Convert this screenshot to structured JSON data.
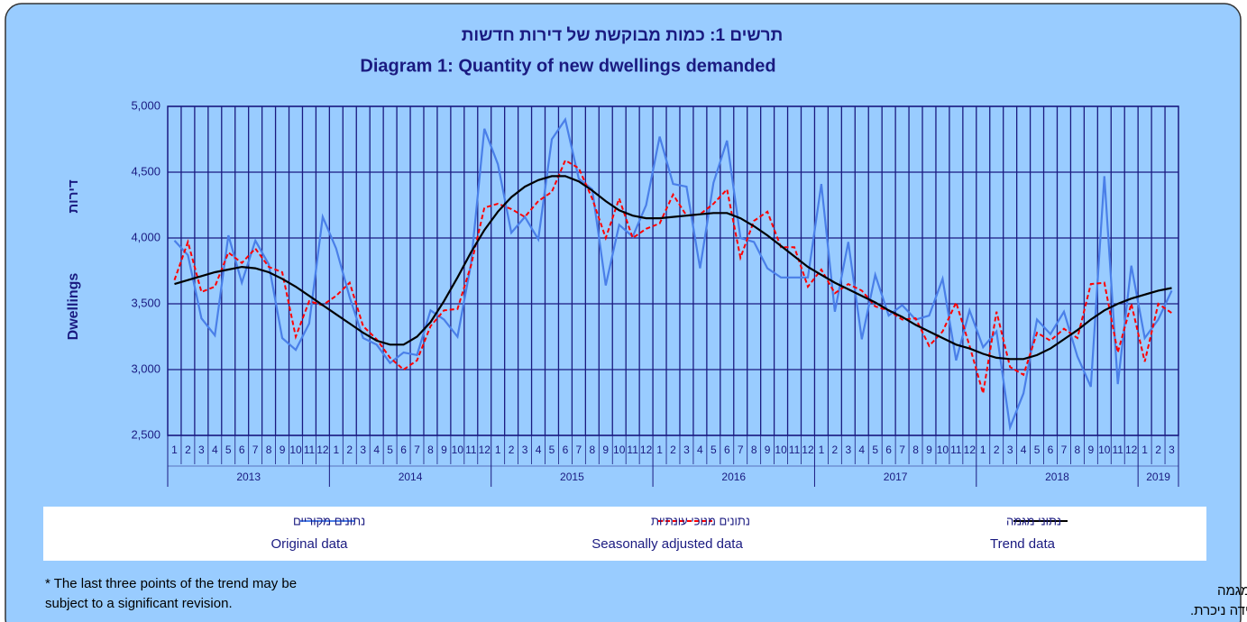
{
  "chart_data": {
    "type": "line",
    "title": "תרשים 1: כמות מבוקשת של דירות חדשות",
    "subtitle": "Diagram 1: Quantity of new dwellings demanded",
    "y_label": "Dwellings",
    "y_label_he": "דירות",
    "categories": [
      "1",
      "2",
      "3",
      "4",
      "5",
      "6",
      "7",
      "8",
      "9",
      "10",
      "11",
      "12",
      "1",
      "2",
      "3",
      "4",
      "5",
      "6",
      "7",
      "8",
      "9",
      "10",
      "11",
      "12",
      "1",
      "2",
      "3",
      "4",
      "5",
      "6",
      "7",
      "8",
      "9",
      "10",
      "11",
      "12",
      "1",
      "2",
      "3",
      "4",
      "5",
      "6",
      "7",
      "8",
      "9",
      "10",
      "11",
      "12",
      "1",
      "2",
      "3",
      "4",
      "5",
      "6",
      "7",
      "8",
      "9",
      "10",
      "11",
      "12",
      "1",
      "2",
      "3",
      "4",
      "5",
      "6",
      "7",
      "8",
      "9",
      "10",
      "11",
      "12",
      "1",
      "2",
      "3"
    ],
    "years": [
      "2013",
      "2014",
      "2015",
      "2016",
      "2017",
      "2018",
      "2019"
    ],
    "series": [
      {
        "name": "Original data",
        "name_he": "נתונים מקוריים",
        "color": "#4a7fe8",
        "dash": "solid",
        "values": [
          3980,
          3870,
          3390,
          3260,
          4020,
          3660,
          3980,
          3800,
          3240,
          3150,
          3350,
          4160,
          3920,
          3550,
          3240,
          3190,
          3050,
          3130,
          3110,
          3450,
          3380,
          3250,
          3800,
          4830,
          4560,
          4040,
          4160,
          3990,
          4750,
          4900,
          4450,
          4370,
          3640,
          4100,
          4010,
          4250,
          4770,
          4410,
          4390,
          3770,
          4420,
          4740,
          4000,
          3970,
          3770,
          3700,
          3700,
          3700,
          4410,
          3440,
          3970,
          3230,
          3720,
          3410,
          3490,
          3380,
          3410,
          3690,
          3070,
          3450,
          3170,
          3290,
          2560,
          2820,
          3380,
          3270,
          3440,
          3100,
          2870,
          4470,
          2890,
          3790,
          3240,
          3380,
          3600
        ]
      },
      {
        "name": "Seasonally adjusted data",
        "name_he": "נתונים מנוכי עונתיות",
        "color": "#ff0000",
        "dash": "dashed",
        "values": [
          3680,
          3970,
          3590,
          3630,
          3890,
          3810,
          3920,
          3780,
          3740,
          3250,
          3520,
          3490,
          3560,
          3660,
          3330,
          3230,
          3090,
          3000,
          3070,
          3330,
          3450,
          3460,
          3790,
          4230,
          4260,
          4220,
          4160,
          4280,
          4350,
          4590,
          4530,
          4300,
          4000,
          4300,
          4000,
          4070,
          4110,
          4330,
          4170,
          4180,
          4260,
          4370,
          3850,
          4130,
          4200,
          3930,
          3930,
          3630,
          3760,
          3580,
          3650,
          3600,
          3480,
          3450,
          3380,
          3390,
          3180,
          3290,
          3510,
          3180,
          2820,
          3440,
          3020,
          2960,
          3280,
          3220,
          3310,
          3240,
          3650,
          3660,
          3130,
          3500,
          3060,
          3500,
          3430
        ]
      },
      {
        "name": "Trend data",
        "name_he": "נתוני מגמה",
        "color": "#000000",
        "dash": "solid",
        "values": [
          3650,
          3680,
          3710,
          3740,
          3760,
          3780,
          3770,
          3740,
          3690,
          3630,
          3560,
          3490,
          3420,
          3350,
          3280,
          3220,
          3190,
          3190,
          3250,
          3360,
          3520,
          3700,
          3890,
          4060,
          4200,
          4310,
          4390,
          4440,
          4470,
          4470,
          4430,
          4360,
          4280,
          4210,
          4170,
          4150,
          4150,
          4160,
          4170,
          4180,
          4190,
          4190,
          4150,
          4090,
          4020,
          3940,
          3860,
          3780,
          3720,
          3660,
          3610,
          3560,
          3510,
          3450,
          3400,
          3340,
          3290,
          3240,
          3190,
          3160,
          3120,
          3090,
          3080,
          3080,
          3110,
          3160,
          3230,
          3300,
          3380,
          3450,
          3500,
          3540,
          3570,
          3600,
          3620
        ]
      }
    ],
    "ylim": [
      2500,
      5000
    ],
    "yticks": [
      {
        "value": 2500,
        "label": "2,500"
      },
      {
        "value": 3000,
        "label": "3,000"
      },
      {
        "value": 3500,
        "label": "3,500"
      },
      {
        "value": 4000,
        "label": "4,000"
      },
      {
        "value": 4500,
        "label": "4,500"
      },
      {
        "value": 5000,
        "label": "5,000"
      }
    ],
    "grid": true,
    "footnote": [
      "* The last three points of the trend may be",
      "subject to a significant revision."
    ],
    "footnote_he": [
      "* שלושת האומדנים האחרונים של המגמה",
      "עשויים להשתנות במידה ניכרת."
    ]
  }
}
